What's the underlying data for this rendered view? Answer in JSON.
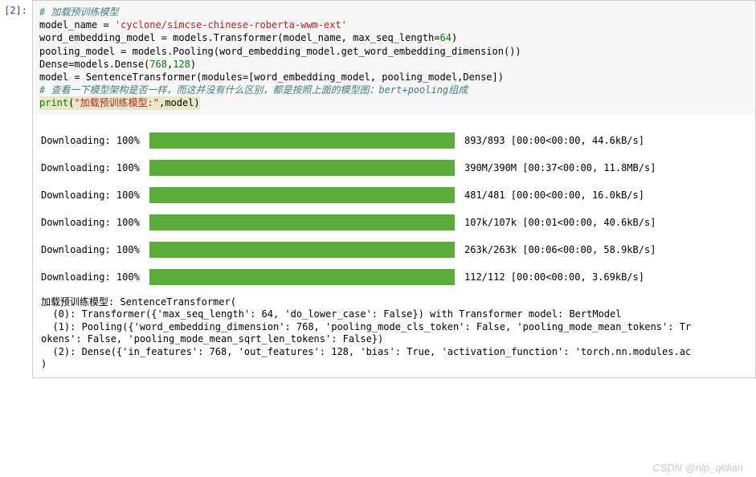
{
  "prompt": "[2]:",
  "code": {
    "line1_comment": "# 加载预训练模型",
    "l2a": "model_name = ",
    "l2b": "'cyclone/simcse-chinese-roberta-wwm-ext'",
    "l3a": "word_embedding_model = models.Transformer(model_name, max_seq_length=",
    "l3b": "64",
    "l3c": ")",
    "l4": "pooling_model = models.Pooling(word_embedding_model.get_word_embedding_dimension())",
    "l5a": "Dense=models.Dense(",
    "l5b": "768",
    "l5c": ",",
    "l5d": "128",
    "l5e": ")",
    "l6": "model = SentenceTransformer(modules=[word_embedding_model, pooling_model,Dense])",
    "l7_comment": "# 查看一下模型架构是否一样，而这并没有什么区别，都是按照上面的模型图：bert+pooling组成",
    "l8a": "print",
    "l8b": "(",
    "l8c": "\"加载预训练模型:\"",
    "l8d": ",model)"
  },
  "downloads": [
    {
      "label": "Downloading: 100%",
      "stats": "893/893 [00:00<00:00, 44.6kB/s]"
    },
    {
      "label": "Downloading: 100%",
      "stats": "390M/390M [00:37<00:00, 11.8MB/s]"
    },
    {
      "label": "Downloading: 100%",
      "stats": "481/481 [00:00<00:00, 16.0kB/s]"
    },
    {
      "label": "Downloading: 100%",
      "stats": "107k/107k [00:01<00:00, 40.6kB/s]"
    },
    {
      "label": "Downloading: 100%",
      "stats": "263k/263k [00:06<00:00, 58.9kB/s]"
    },
    {
      "label": "Downloading: 100%",
      "stats": "112/112 [00:00<00:00, 3.69kB/s]"
    }
  ],
  "textout": {
    "l1": "加载预训练模型: SentenceTransformer(",
    "l2": "  (0): Transformer({'max_seq_length': 64, 'do_lower_case': False}) with Transformer model: BertModel",
    "l3": "  (1): Pooling({'word_embedding_dimension': 768, 'pooling_mode_cls_token': False, 'pooling_mode_mean_tokens': Tr",
    "l4": "okens': False, 'pooling_mode_mean_sqrt_len_tokens': False})",
    "l5": "  (2): Dense({'in_features': 768, 'out_features': 128, 'bias': True, 'activation_function': 'torch.nn.modules.ac",
    "l6": ")"
  },
  "watermark": "CSDN @nlp_qidian",
  "colors": {
    "progress_bar": "#5aad3b",
    "code_bg": "#f7f7f7",
    "comment": "#408080",
    "string": "#ba2121",
    "number": "#008000",
    "prompt": "#303F9F"
  }
}
